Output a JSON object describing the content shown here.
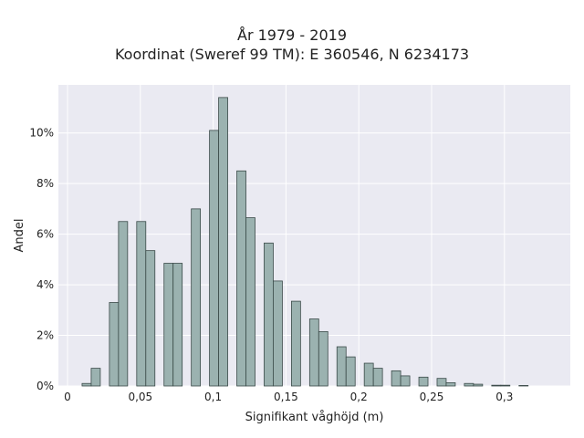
{
  "chart_data": {
    "type": "bar",
    "title": "År 1979 - 2019",
    "subtitle": "Koordinat (Sweref 99 TM): E 360546, N 6234173",
    "xlabel": "Signifikant våghöjd (m)",
    "ylabel": "Andel",
    "xlim": [
      -0.005,
      0.345
    ],
    "ylim": [
      0,
      11.9
    ],
    "x_ticks": [
      {
        "value": 0,
        "label": "0"
      },
      {
        "value": 0.05,
        "label": "0,05"
      },
      {
        "value": 0.1,
        "label": "0,1"
      },
      {
        "value": 0.15,
        "label": "0,15"
      },
      {
        "value": 0.2,
        "label": "0,2"
      },
      {
        "value": 0.25,
        "label": "0,25"
      },
      {
        "value": 0.3,
        "label": "0,3"
      }
    ],
    "y_ticks": [
      {
        "value": 0,
        "label": "0%"
      },
      {
        "value": 2,
        "label": "2%"
      },
      {
        "value": 4,
        "label": "4%"
      },
      {
        "value": 6,
        "label": "6%"
      },
      {
        "value": 8,
        "label": "8%"
      },
      {
        "value": 10,
        "label": "10%"
      }
    ],
    "bin_width": 0.00625,
    "bins": [
      {
        "x0": 0.01,
        "y": 0.1
      },
      {
        "x0": 0.01625,
        "y": 0.7
      },
      {
        "x0": 0.02875,
        "y": 3.3
      },
      {
        "x0": 0.035,
        "y": 6.5
      },
      {
        "x0": 0.0475,
        "y": 6.5
      },
      {
        "x0": 0.05375,
        "y": 5.35
      },
      {
        "x0": 0.06625,
        "y": 4.85
      },
      {
        "x0": 0.0725,
        "y": 4.85
      },
      {
        "x0": 0.085,
        "y": 7.0
      },
      {
        "x0": 0.0975,
        "y": 10.1
      },
      {
        "x0": 0.10375,
        "y": 11.4
      },
      {
        "x0": 0.11625,
        "y": 8.5
      },
      {
        "x0": 0.1225,
        "y": 6.65
      },
      {
        "x0": 0.135,
        "y": 5.65
      },
      {
        "x0": 0.14125,
        "y": 4.15
      },
      {
        "x0": 0.15375,
        "y": 3.35
      },
      {
        "x0": 0.16625,
        "y": 2.65
      },
      {
        "x0": 0.1725,
        "y": 2.15
      },
      {
        "x0": 0.185,
        "y": 1.55
      },
      {
        "x0": 0.19125,
        "y": 1.15
      },
      {
        "x0": 0.20375,
        "y": 0.9
      },
      {
        "x0": 0.21,
        "y": 0.7
      },
      {
        "x0": 0.2225,
        "y": 0.6
      },
      {
        "x0": 0.22875,
        "y": 0.4
      },
      {
        "x0": 0.24125,
        "y": 0.35
      },
      {
        "x0": 0.25375,
        "y": 0.3
      },
      {
        "x0": 0.26,
        "y": 0.13
      },
      {
        "x0": 0.2725,
        "y": 0.1
      },
      {
        "x0": 0.27875,
        "y": 0.07
      },
      {
        "x0": 0.29125,
        "y": 0.03
      },
      {
        "x0": 0.2975,
        "y": 0.03
      },
      {
        "x0": 0.31,
        "y": 0.02
      }
    ],
    "grid": true,
    "colors": {
      "bar_fill": "#9bb2b0",
      "bar_edge": "#3a4a48",
      "plot_background": "#eaeaf2",
      "grid": "#ffffff"
    }
  }
}
